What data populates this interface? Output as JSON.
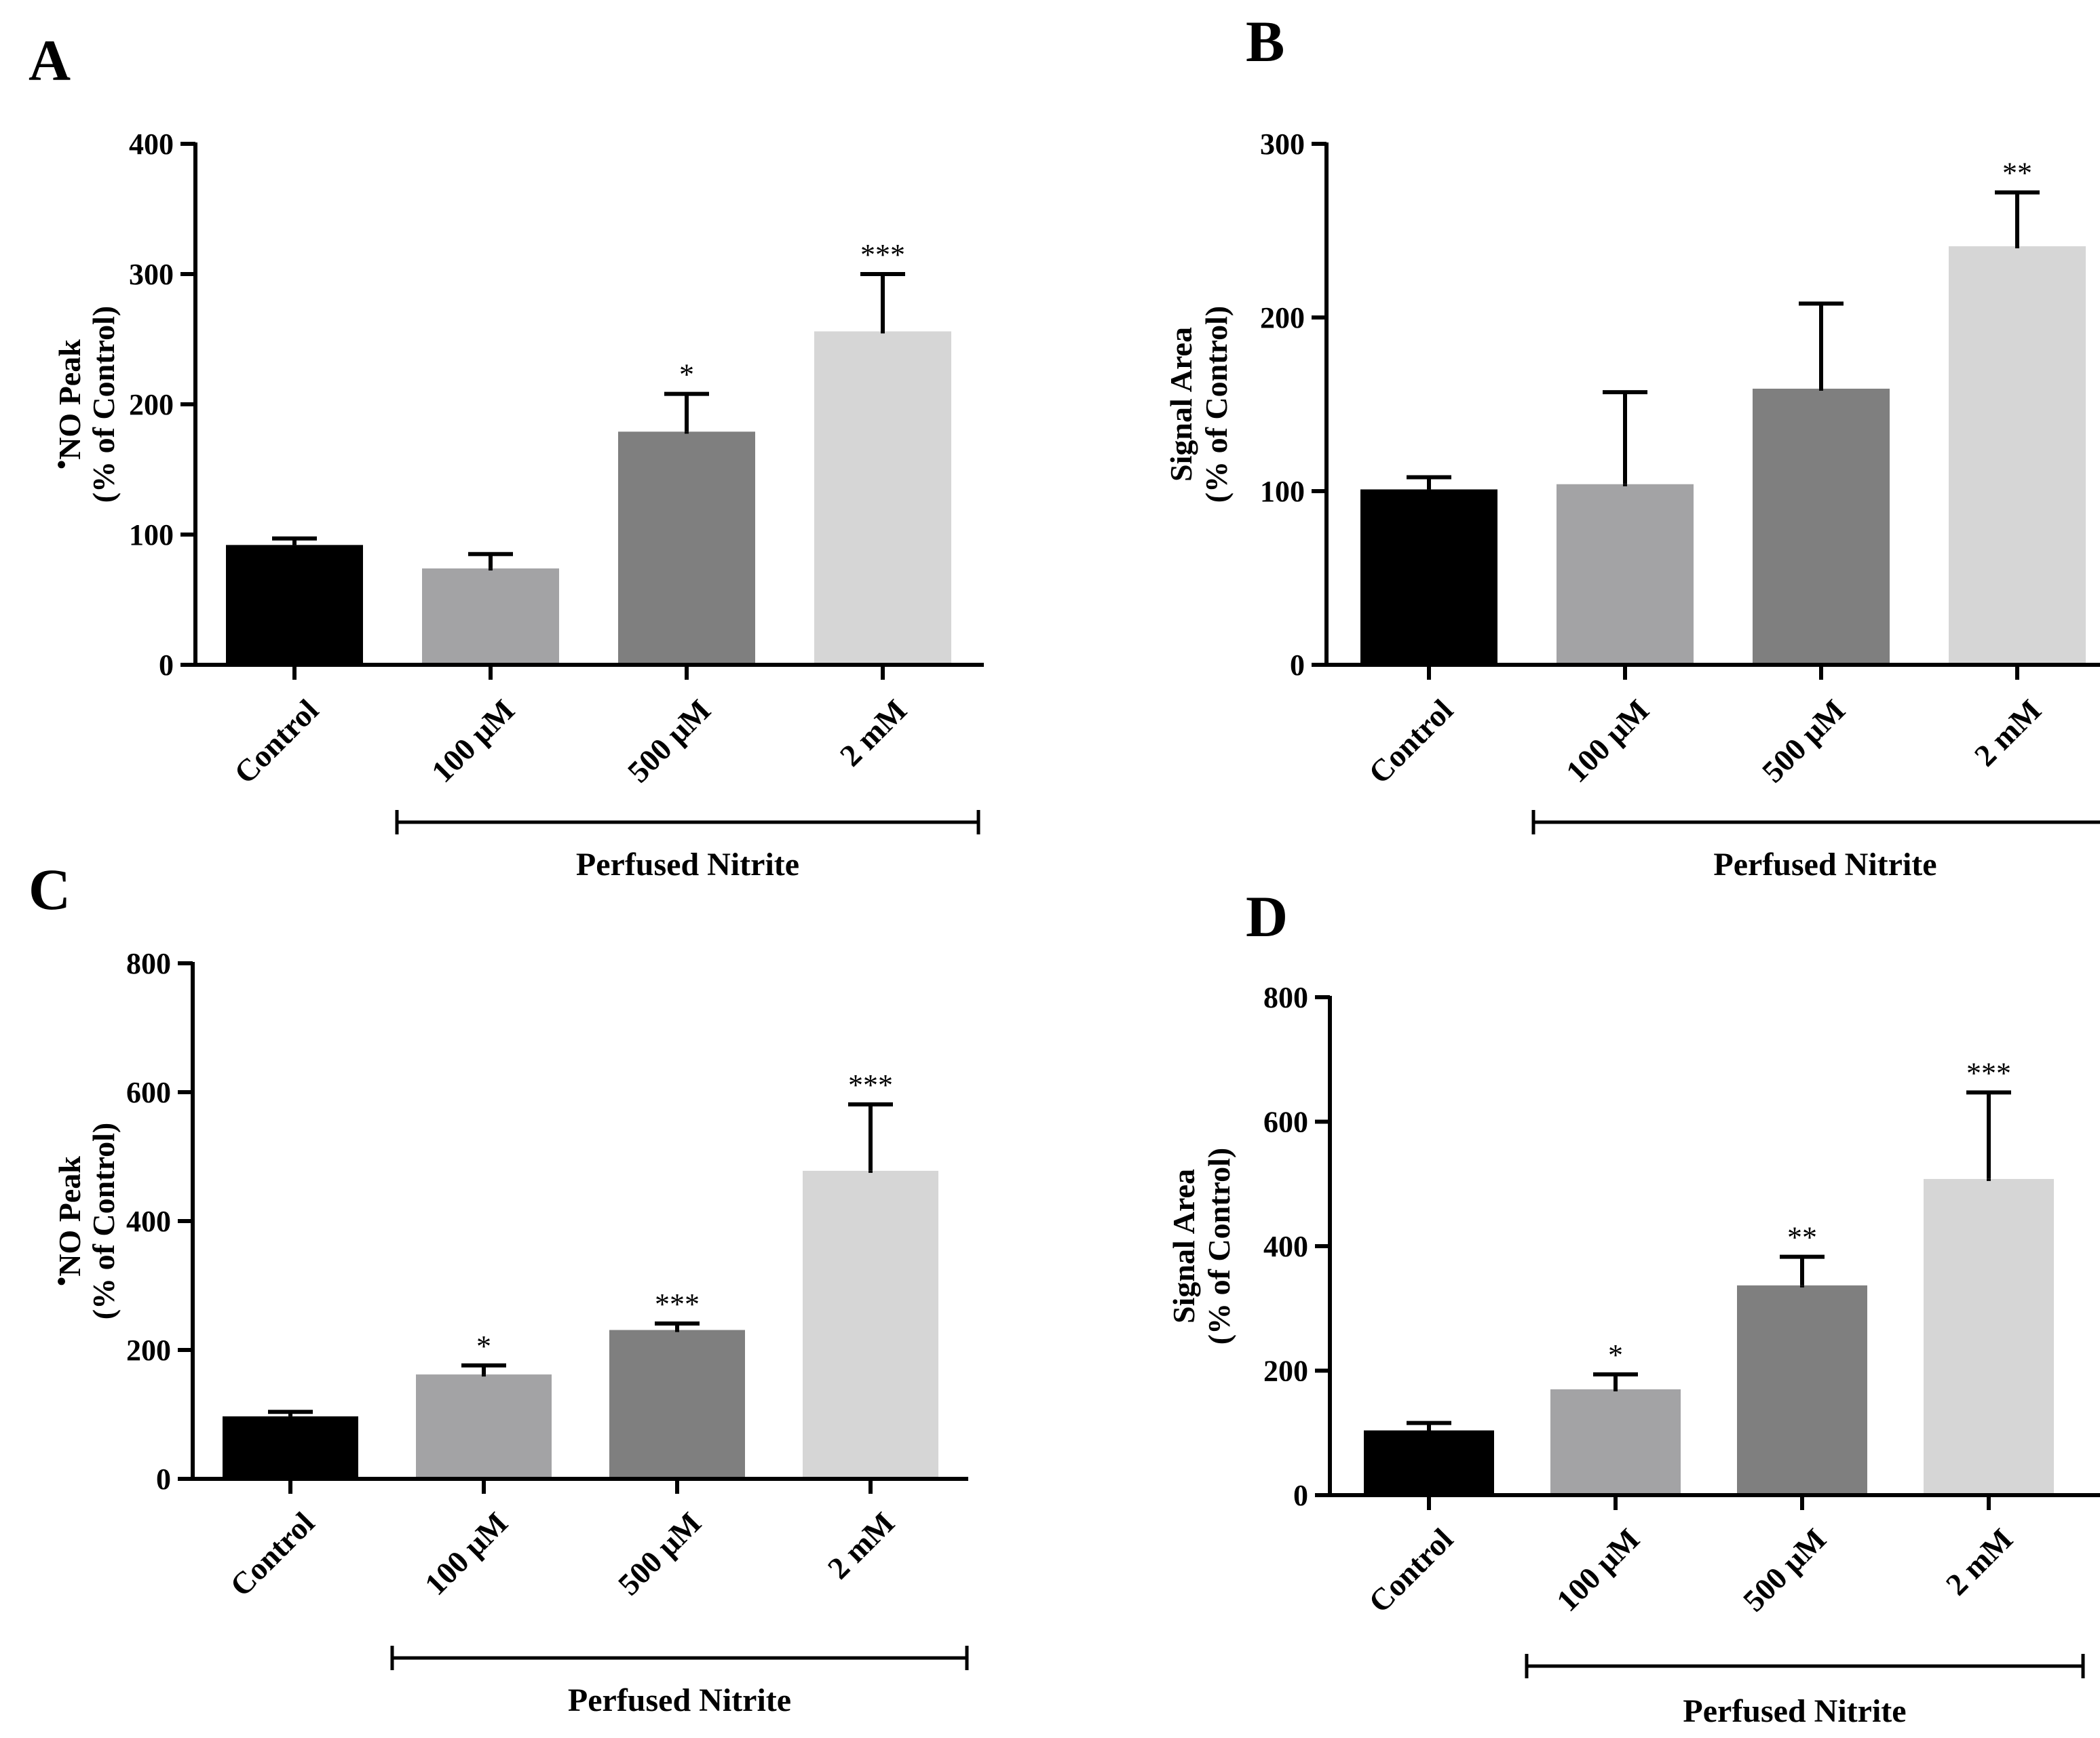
{
  "chart_data": [
    {
      "panel": "A",
      "type": "bar",
      "categories": [
        "Control",
        "100 μM",
        "500 μM",
        "2 mM"
      ],
      "values": [
        92,
        74,
        179,
        256
      ],
      "errors": [
        5,
        11,
        29,
        44
      ],
      "significance": [
        "",
        "",
        "*",
        "***"
      ],
      "colors": [
        "#000000",
        "#a3a3a5",
        "#7f7f7f",
        "#d6d6d6"
      ],
      "ylabel_line1": "NO Peak",
      "ylabel_dot": "•",
      "ylabel_line2": "(% of Control)",
      "ylim": [
        0,
        400
      ],
      "yticks": [
        0,
        100,
        200,
        300,
        400
      ],
      "group_label": "Perfused Nitrite",
      "grid": false
    },
    {
      "panel": "B",
      "type": "bar",
      "categories": [
        "Control",
        "100 μM",
        "500 μM",
        "2 mM"
      ],
      "values": [
        101,
        104,
        159,
        241
      ],
      "errors": [
        7,
        53,
        49,
        31
      ],
      "significance": [
        "",
        "",
        "",
        "**"
      ],
      "colors": [
        "#000000",
        "#a3a3a5",
        "#7f7f7f",
        "#d6d6d6"
      ],
      "ylabel_line1": "Signal Area",
      "ylabel_dot": "",
      "ylabel_line2": "(% of Control)",
      "ylim": [
        0,
        300
      ],
      "yticks": [
        0,
        100,
        200,
        300
      ],
      "group_label": "Perfused Nitrite",
      "grid": false
    },
    {
      "panel": "C",
      "type": "bar",
      "categories": [
        "Control",
        "100 μM",
        "500 μM",
        "2 mM"
      ],
      "values": [
        97,
        162,
        231,
        478
      ],
      "errors": [
        7,
        14,
        10,
        103
      ],
      "significance": [
        "",
        "*",
        "***",
        "***"
      ],
      "colors": [
        "#000000",
        "#a3a3a5",
        "#7f7f7f",
        "#d6d6d6"
      ],
      "ylabel_line1": "NO Peak",
      "ylabel_dot": "•",
      "ylabel_line2": "(% of Control)",
      "ylim": [
        0,
        800
      ],
      "yticks": [
        0,
        200,
        400,
        600,
        800
      ],
      "group_label": "Perfused Nitrite",
      "grid": false
    },
    {
      "panel": "D",
      "type": "bar",
      "categories": [
        "Control",
        "100 μM",
        "500 μM",
        "2 mM"
      ],
      "values": [
        104,
        170,
        337,
        508
      ],
      "errors": [
        12,
        24,
        46,
        139
      ],
      "significance": [
        "",
        "*",
        "**",
        "***"
      ],
      "colors": [
        "#000000",
        "#a3a3a5",
        "#7f7f7f",
        "#d6d6d6"
      ],
      "ylabel_line1": "Signal Area",
      "ylabel_dot": "",
      "ylabel_line2": "(% of Control)",
      "ylim": [
        0,
        800
      ],
      "yticks": [
        0,
        200,
        400,
        600,
        800
      ],
      "group_label": "Perfused Nitrite",
      "grid": false
    }
  ]
}
